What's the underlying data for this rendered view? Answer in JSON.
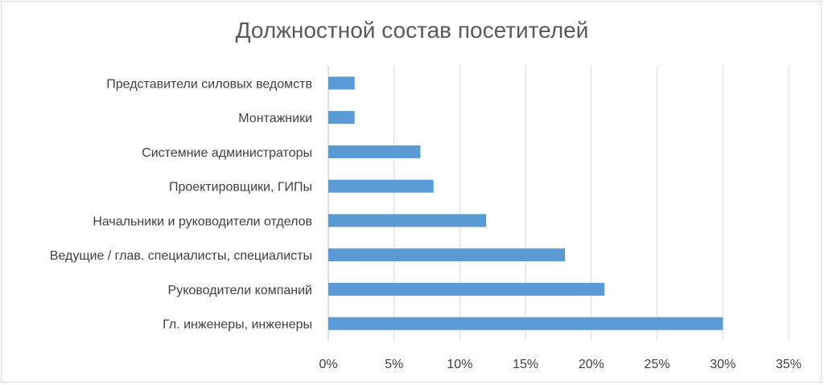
{
  "chart_data": {
    "type": "bar",
    "orientation": "horizontal",
    "title": "Должностной состав посетителей",
    "categories": [
      "Представители силовых ведомств",
      "Монтажники",
      "Системние администраторы",
      "Проектировщики, ГИПы",
      "Начальники и руководители отделов",
      "Ведущие / глав. специалисты, специалисты",
      "Руководители компаний",
      "Гл. инженеры, инженеры"
    ],
    "values": [
      2,
      2,
      7,
      8,
      12,
      18,
      21,
      30
    ],
    "xlim": [
      0,
      35
    ],
    "x_ticks": [
      "0%",
      "5%",
      "10%",
      "15%",
      "20%",
      "25%",
      "30%",
      "35%"
    ],
    "x_tick_values": [
      0,
      5,
      10,
      15,
      20,
      25,
      30,
      35
    ],
    "grid": true,
    "bar_color": "#5b9bd5"
  }
}
